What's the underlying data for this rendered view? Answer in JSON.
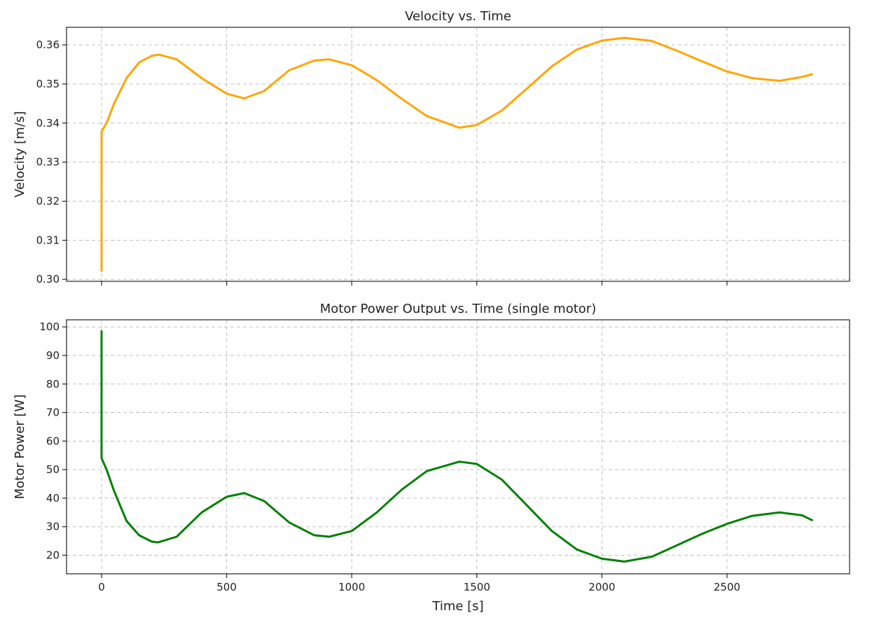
{
  "chart_data": [
    {
      "type": "line",
      "title": "Velocity vs. Time",
      "xlabel": "",
      "ylabel": "Velocity [m/s]",
      "xlim": [
        -140,
        2990
      ],
      "ylim": [
        0.2995,
        0.3645
      ],
      "xticks": [
        0,
        500,
        1000,
        1500,
        2000,
        2500
      ],
      "xtick_labels_visible": false,
      "yticks": [
        0.3,
        0.31,
        0.32,
        0.33,
        0.34,
        0.35,
        0.36
      ],
      "ytick_labels": [
        "0.30",
        "0.31",
        "0.32",
        "0.33",
        "0.34",
        "0.35",
        "0.36"
      ],
      "grid": true,
      "color": "#FFA500",
      "series": [
        {
          "x": [
            0,
            0,
            20,
            50,
            100,
            150,
            200,
            230,
            300,
            400,
            500,
            570,
            650,
            750,
            850,
            910,
            1000,
            1100,
            1200,
            1300,
            1430,
            1500,
            1600,
            1700,
            1800,
            1900,
            2000,
            2090,
            2200,
            2300,
            2400,
            2500,
            2600,
            2710,
            2800,
            2840
          ],
          "y": [
            0.3022,
            0.3378,
            0.34,
            0.345,
            0.3515,
            0.3555,
            0.3572,
            0.3575,
            0.3563,
            0.3515,
            0.3475,
            0.3463,
            0.3482,
            0.3535,
            0.356,
            0.3563,
            0.3548,
            0.351,
            0.3462,
            0.3418,
            0.3388,
            0.3395,
            0.3432,
            0.3488,
            0.3545,
            0.3588,
            0.3611,
            0.3618,
            0.361,
            0.3585,
            0.3558,
            0.3532,
            0.3515,
            0.3508,
            0.3518,
            0.3525
          ]
        }
      ]
    },
    {
      "type": "line",
      "title": "Motor Power Output vs. Time (single motor)",
      "xlabel": "Time [s]",
      "ylabel": "Motor Power [W]",
      "xlim": [
        -140,
        2990
      ],
      "ylim": [
        13.5,
        102.5
      ],
      "xticks": [
        0,
        500,
        1000,
        1500,
        2000,
        2500
      ],
      "xtick_labels": [
        "0",
        "500",
        "1000",
        "1500",
        "2000",
        "2500"
      ],
      "yticks": [
        20,
        30,
        40,
        50,
        60,
        70,
        80,
        90,
        100
      ],
      "ytick_labels": [
        "20",
        "30",
        "40",
        "50",
        "60",
        "70",
        "80",
        "90",
        "100"
      ],
      "grid": true,
      "color": "#008000",
      "series": [
        {
          "x": [
            0,
            0,
            20,
            50,
            100,
            150,
            200,
            225,
            300,
            400,
            500,
            570,
            650,
            750,
            850,
            910,
            1000,
            1100,
            1200,
            1300,
            1430,
            1500,
            1600,
            1700,
            1800,
            1900,
            2000,
            2090,
            2200,
            2300,
            2400,
            2500,
            2600,
            2710,
            2800,
            2840
          ],
          "y": [
            98.5,
            54.0,
            50.0,
            42.5,
            32.0,
            27.0,
            24.8,
            24.5,
            26.5,
            35.0,
            40.5,
            41.8,
            39.0,
            31.5,
            27.0,
            26.5,
            28.5,
            35.0,
            43.0,
            49.5,
            52.8,
            52.0,
            46.5,
            37.5,
            28.5,
            22.0,
            18.8,
            17.8,
            19.5,
            23.5,
            27.5,
            31.0,
            33.8,
            35.0,
            34.0,
            32.3
          ]
        }
      ]
    }
  ]
}
